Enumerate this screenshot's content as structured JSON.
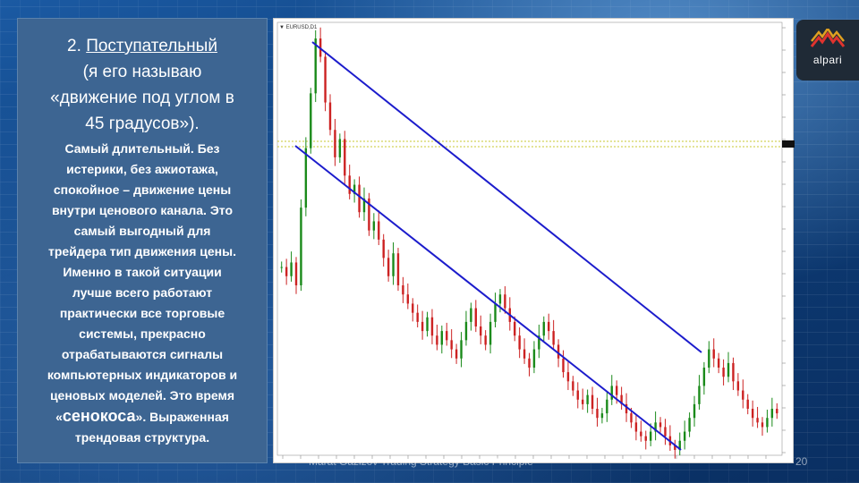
{
  "slide": {
    "heading_num": "2.",
    "heading_word": "Поступательный",
    "heading_sub_1": "(я его называю",
    "heading_sub_2": "«движение под углом в",
    "heading_sub_3": "45 градусов»).",
    "body_lines": [
      "Самый длительный. Без",
      "истерики, без ажиотажа,",
      "спокойное – движение цены",
      "внутри ценового канала. Это",
      "самый  выгодный для",
      "трейдера тип движения цены.",
      "Именно в такой ситуации",
      "лучше всего работают",
      "практически все торговые",
      "системы, прекрасно",
      "отрабатываются сигналы",
      "компьютерных индикаторов и",
      "ценовых моделей. Это время"
    ],
    "quote_open": "«",
    "quote_word": "сенокоса",
    "quote_close": "».",
    "quote_tail": " Выраженная",
    "last_line": "трендовая структура.",
    "footer": "Marat Gazizov Trading Strategy Basic Principle",
    "page_number": "20"
  },
  "logo": {
    "name": "alpari"
  },
  "colors": {
    "panel": "#3d6592",
    "channel_line": "#1c1ccc",
    "candle_up": "#1a8a1a",
    "candle_down": "#cc2222",
    "dotted_level": "#c8c830"
  },
  "chart_data": {
    "type": "candlestick",
    "legend_label": "▼ EURUSD,D1",
    "trend": "down",
    "closes": [
      42,
      40,
      43,
      38,
      55,
      68,
      80,
      92,
      88,
      78,
      72,
      66,
      70,
      62,
      58,
      60,
      54,
      57,
      50,
      52,
      48,
      44,
      40,
      45,
      38,
      36,
      34,
      32,
      30,
      28,
      31,
      27,
      25,
      28,
      26,
      24,
      22,
      26,
      30,
      33,
      29,
      27,
      25,
      30,
      34,
      36,
      33,
      30,
      27,
      24,
      22,
      20,
      24,
      27,
      30,
      28,
      25,
      22,
      19,
      17,
      15,
      13,
      12,
      14,
      11,
      9,
      10,
      13,
      16,
      14,
      12,
      10,
      8,
      6,
      5,
      4,
      6,
      8,
      7,
      5,
      3,
      2,
      4,
      6,
      9,
      12,
      16,
      20,
      24,
      22,
      20,
      18,
      21,
      17,
      15,
      13,
      11,
      9,
      8,
      7,
      9,
      11,
      10
    ]
  }
}
